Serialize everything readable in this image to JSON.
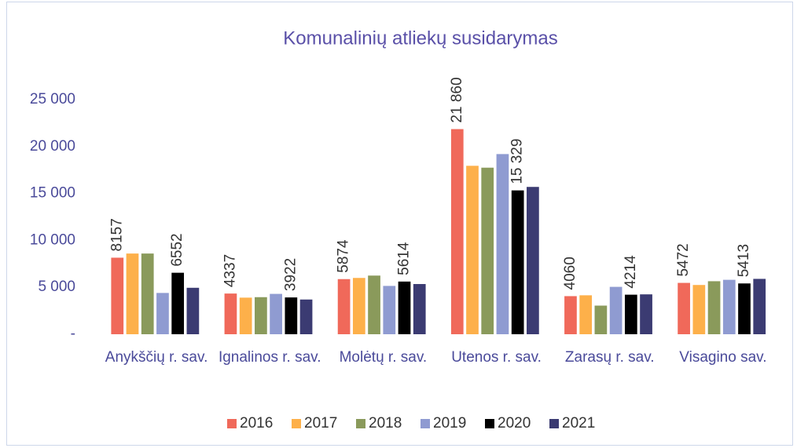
{
  "chart_data": {
    "type": "bar",
    "title": "Komunalinių atliekų susidarymas",
    "categories": [
      "Anykščių r. sav.",
      "Ignalinos r. sav.",
      "Molėtų r. sav.",
      "Utenos r. sav.",
      "Zarasų r. sav.",
      "Visagino sav."
    ],
    "series": [
      {
        "name": "2016",
        "color": "#f0695a",
        "values": [
          8157,
          4337,
          5874,
          21860,
          4060,
          5472
        ],
        "value_labels": [
          "8157",
          "4337",
          "5874",
          "21 860",
          "4060",
          "5472"
        ]
      },
      {
        "name": "2017",
        "color": "#fdb04a",
        "values": [
          8600,
          3900,
          6000,
          17950,
          4150,
          5250
        ]
      },
      {
        "name": "2018",
        "color": "#8a9a5b",
        "values": [
          8600,
          3950,
          6250,
          17750,
          3050,
          5650
        ]
      },
      {
        "name": "2019",
        "color": "#8f9bd1",
        "values": [
          4400,
          4300,
          5150,
          19200,
          5050,
          5800
        ]
      },
      {
        "name": "2020",
        "color": "#000000",
        "values": [
          6552,
          3922,
          5614,
          15329,
          4214,
          5413
        ],
        "value_labels": [
          "6552",
          "3922",
          "5614",
          "15 329",
          "4214",
          "5413"
        ]
      },
      {
        "name": "2021",
        "color": "#3b3b72",
        "values": [
          4950,
          3700,
          5350,
          15700,
          4250,
          5900
        ]
      }
    ],
    "ylim": [
      0,
      25000
    ],
    "yticks": [
      {
        "value": 0,
        "label": "-"
      },
      {
        "value": 5000,
        "label": "5 000"
      },
      {
        "value": 10000,
        "label": "10 000"
      },
      {
        "value": 15000,
        "label": "15 000"
      },
      {
        "value": 20000,
        "label": "20 000"
      },
      {
        "value": 25000,
        "label": "25 000"
      }
    ],
    "legend": "bottom"
  }
}
